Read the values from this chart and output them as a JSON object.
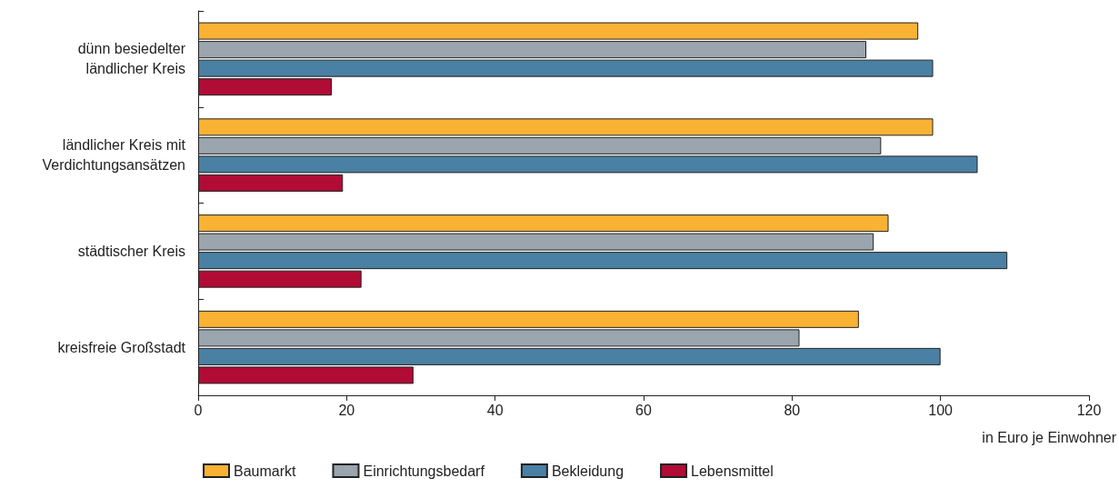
{
  "chart_data": {
    "type": "bar",
    "orientation": "horizontal",
    "xlabel": "in Euro je Einwohner",
    "categories": [
      "dünn besiedelter\nländlicher Kreis",
      "ländlicher Kreis mit\nVerdichtungsansätzen",
      "städtischer Kreis",
      "kreisfreie Großstadt"
    ],
    "series": [
      {
        "name": "Baumarkt",
        "color": "#f9b233",
        "values": [
          97,
          99,
          93,
          89
        ]
      },
      {
        "name": "Einrichtungsbedarf",
        "color": "#9aa5ad",
        "values": [
          90,
          92,
          91,
          81
        ]
      },
      {
        "name": "Bekleidung",
        "color": "#4a80a3",
        "values": [
          99,
          105,
          109,
          100
        ]
      },
      {
        "name": "Lebensmittel",
        "color": "#b00c35",
        "values": [
          18,
          19.5,
          22,
          29
        ]
      }
    ],
    "xlim": [
      0,
      120
    ],
    "xticks": [
      0,
      20,
      40,
      60,
      80,
      100,
      120
    ],
    "grid": false,
    "legend": "bottom left"
  }
}
